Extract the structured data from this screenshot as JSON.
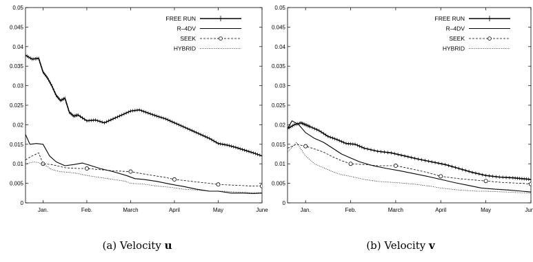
{
  "chart_data": [
    {
      "type": "line",
      "caption_prefix": "(a) Velocity ",
      "caption_symbol": "u",
      "x_ticks": [
        {
          "label": "Jan.",
          "x": 1
        },
        {
          "label": "Feb.",
          "x": 2
        },
        {
          "label": "March",
          "x": 3
        },
        {
          "label": "April",
          "x": 4
        },
        {
          "label": "May",
          "x": 5
        },
        {
          "label": "June",
          "x": 6
        }
      ],
      "xlim": [
        0.6,
        6
      ],
      "ylim": [
        0,
        0.05
      ],
      "y_ticks": [
        "0",
        "0.005",
        "0.01",
        "0.015",
        "0.02",
        "0.025",
        "0.03",
        "0.035",
        "0.04",
        "0.045",
        "0.05"
      ],
      "legend_position": "top-right",
      "series": [
        {
          "name": "FREE RUN",
          "style": "solid-cross",
          "x": [
            0.6,
            0.75,
            0.9,
            1.0,
            1.1,
            1.2,
            1.3,
            1.4,
            1.5,
            1.6,
            1.7,
            1.8,
            2.0,
            2.2,
            2.4,
            2.6,
            2.8,
            3.0,
            3.2,
            3.4,
            3.6,
            3.8,
            4.0,
            4.2,
            4.4,
            4.6,
            4.8,
            5.0,
            5.2,
            5.4,
            5.6,
            5.8,
            6.0
          ],
          "y": [
            0.0378,
            0.0368,
            0.037,
            0.0335,
            0.032,
            0.03,
            0.0275,
            0.0262,
            0.0268,
            0.0232,
            0.0222,
            0.0225,
            0.021,
            0.0212,
            0.0205,
            0.0215,
            0.0225,
            0.0235,
            0.0238,
            0.023,
            0.0222,
            0.0215,
            0.0205,
            0.0195,
            0.0185,
            0.0175,
            0.0165,
            0.0152,
            0.0148,
            0.0142,
            0.0135,
            0.0128,
            0.012
          ]
        },
        {
          "name": "R–4DV",
          "style": "solid",
          "x": [
            0.6,
            0.7,
            0.85,
            1.0,
            1.15,
            1.3,
            1.5,
            1.7,
            1.9,
            2.1,
            2.3,
            2.6,
            2.9,
            3.1,
            3.3,
            3.6,
            3.9,
            4.2,
            4.5,
            4.8,
            5.0,
            5.3,
            5.6,
            5.8,
            6.0
          ],
          "y": [
            0.0175,
            0.015,
            0.0152,
            0.015,
            0.012,
            0.0105,
            0.0095,
            0.0098,
            0.0102,
            0.0095,
            0.0088,
            0.008,
            0.007,
            0.0062,
            0.006,
            0.0055,
            0.0048,
            0.0042,
            0.0035,
            0.003,
            0.003,
            0.0025,
            0.0025,
            0.0024,
            0.0025
          ]
        },
        {
          "name": "SEEK",
          "style": "dashed-circle",
          "x": [
            0.6,
            0.75,
            0.9,
            1.0,
            1.2,
            1.5,
            1.8,
            2.0,
            2.3,
            2.6,
            3.0,
            3.4,
            3.8,
            4.0,
            4.4,
            4.8,
            5.0,
            5.4,
            5.8,
            6.0
          ],
          "y": [
            0.011,
            0.012,
            0.0128,
            0.01,
            0.0098,
            0.009,
            0.0088,
            0.0088,
            0.0085,
            0.0082,
            0.008,
            0.0072,
            0.0065,
            0.006,
            0.0055,
            0.005,
            0.0047,
            0.0045,
            0.0043,
            0.0043
          ],
          "markers_x": [
            1.0,
            2.0,
            3.0,
            4.0,
            5.0,
            6.0
          ]
        },
        {
          "name": "HYBRID",
          "style": "dotted",
          "x": [
            0.6,
            0.8,
            1.0,
            1.2,
            1.4,
            1.6,
            1.8,
            2.0,
            2.3,
            2.6,
            2.9,
            3.0,
            3.3,
            3.6,
            3.9,
            4.2,
            4.5,
            4.8,
            5.1,
            5.4,
            5.7,
            6.0
          ],
          "y": [
            0.01,
            0.0105,
            0.01,
            0.0085,
            0.008,
            0.0078,
            0.0075,
            0.007,
            0.0065,
            0.006,
            0.0055,
            0.005,
            0.0048,
            0.0043,
            0.004,
            0.0035,
            0.0033,
            0.003,
            0.003,
            0.0028,
            0.0026,
            0.0026
          ]
        }
      ]
    },
    {
      "type": "line",
      "caption_prefix": "(b) Velocity ",
      "caption_symbol": "v",
      "x_ticks": [
        {
          "label": "Jan.",
          "x": 1
        },
        {
          "label": "Feb.",
          "x": 2
        },
        {
          "label": "March",
          "x": 3
        },
        {
          "label": "April",
          "x": 4
        },
        {
          "label": "May",
          "x": 5
        },
        {
          "label": "June",
          "x": 6
        }
      ],
      "xlim": [
        0.6,
        6
      ],
      "ylim": [
        0,
        0.05
      ],
      "y_ticks": [
        "0",
        "0.005",
        "0.01",
        "0.015",
        "0.02",
        "0.025",
        "0.03",
        "0.035",
        "0.04",
        "0.045",
        "0.05"
      ],
      "legend_position": "top-right",
      "series": [
        {
          "name": "FREE RUN",
          "style": "solid-cross",
          "x": [
            0.6,
            0.75,
            0.9,
            1.0,
            1.1,
            1.3,
            1.5,
            1.7,
            1.9,
            2.1,
            2.3,
            2.6,
            2.9,
            3.2,
            3.5,
            3.8,
            4.1,
            4.4,
            4.7,
            5.0,
            5.3,
            5.6,
            5.8,
            6.0
          ],
          "y": [
            0.019,
            0.02,
            0.0205,
            0.02,
            0.0195,
            0.0185,
            0.017,
            0.0162,
            0.0152,
            0.015,
            0.014,
            0.0132,
            0.0128,
            0.012,
            0.0112,
            0.0105,
            0.0098,
            0.0088,
            0.0078,
            0.007,
            0.0066,
            0.0064,
            0.0062,
            0.006
          ]
        },
        {
          "name": "R–4DV",
          "style": "solid",
          "x": [
            0.6,
            0.7,
            0.85,
            1.0,
            1.2,
            1.4,
            1.6,
            1.8,
            2.0,
            2.2,
            2.5,
            2.8,
            3.1,
            3.4,
            3.7,
            4.0,
            4.3,
            4.6,
            4.9,
            5.2,
            5.5,
            5.8,
            6.0
          ],
          "y": [
            0.019,
            0.021,
            0.02,
            0.018,
            0.0165,
            0.0155,
            0.014,
            0.0125,
            0.0115,
            0.0105,
            0.0095,
            0.0088,
            0.0082,
            0.0075,
            0.0068,
            0.006,
            0.0052,
            0.0045,
            0.0038,
            0.0035,
            0.0033,
            0.003,
            0.0028
          ]
        },
        {
          "name": "SEEK",
          "style": "dashed-circle",
          "x": [
            0.6,
            0.8,
            1.0,
            1.2,
            1.4,
            1.6,
            1.8,
            2.0,
            2.3,
            2.6,
            3.0,
            3.3,
            3.7,
            4.0,
            4.4,
            4.8,
            5.0,
            5.4,
            5.8,
            6.0
          ],
          "y": [
            0.014,
            0.015,
            0.0145,
            0.0138,
            0.013,
            0.0118,
            0.0108,
            0.01,
            0.0098,
            0.0095,
            0.0095,
            0.0088,
            0.0078,
            0.0068,
            0.0062,
            0.0058,
            0.0056,
            0.0052,
            0.005,
            0.0048
          ],
          "markers_x": [
            1.0,
            2.0,
            3.0,
            4.0,
            5.0,
            6.0
          ]
        },
        {
          "name": "HYBRID",
          "style": "dotted",
          "x": [
            0.6,
            0.8,
            1.0,
            1.2,
            1.4,
            1.6,
            1.8,
            2.0,
            2.3,
            2.6,
            3.0,
            3.4,
            3.8,
            4.0,
            4.4,
            4.8,
            5.0,
            5.4,
            5.8,
            6.0
          ],
          "y": [
            0.013,
            0.0155,
            0.012,
            0.01,
            0.009,
            0.008,
            0.0072,
            0.0068,
            0.006,
            0.0055,
            0.0052,
            0.0048,
            0.0042,
            0.0038,
            0.0033,
            0.003,
            0.003,
            0.0028,
            0.0026,
            0.0025
          ]
        }
      ]
    }
  ]
}
